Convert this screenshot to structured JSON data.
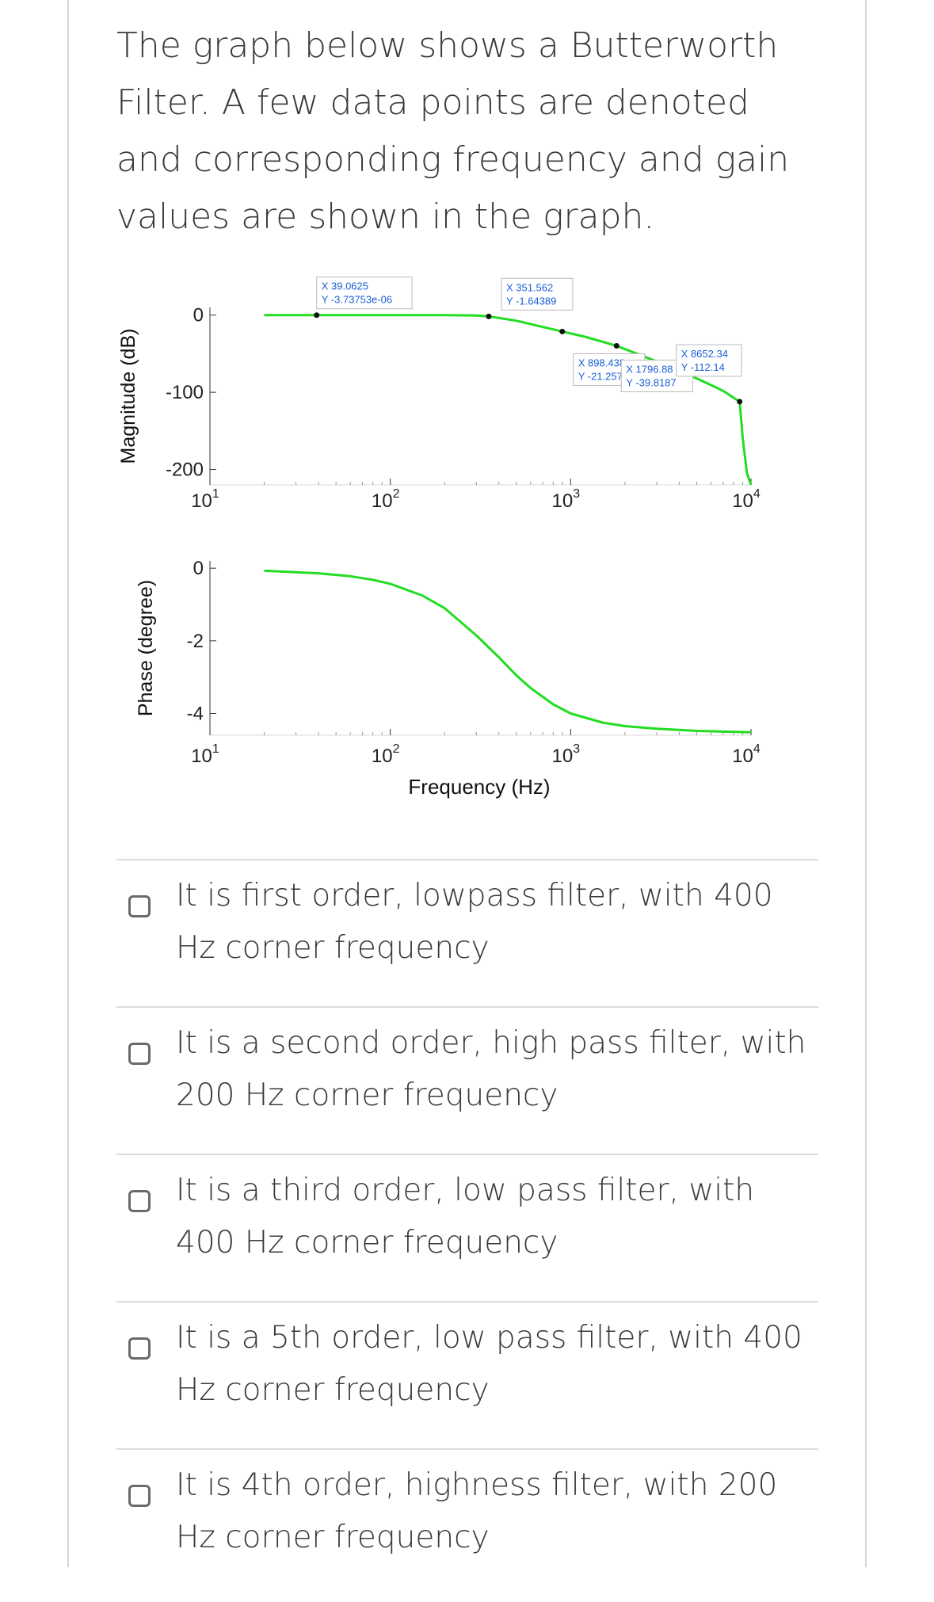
{
  "question": "The graph below shows a Butterworth Filter. A few data points are denoted and corresponding frequency and gain values are shown in the graph.",
  "chart_data": [
    {
      "type": "line",
      "ylabel": "Magnitude (dB)",
      "xscale": "log",
      "xlim": [
        10,
        10000
      ],
      "ylim": [
        -220,
        10
      ],
      "yticks": [
        0,
        -100,
        -200
      ],
      "ytick_labels": [
        "0",
        "-100",
        "-200"
      ],
      "xtick_bases": [
        "10",
        "10",
        "10",
        "10"
      ],
      "xtick_exps": [
        "1",
        "2",
        "3",
        "4"
      ],
      "series": [
        {
          "color": "#22dd22",
          "x": [
            20,
            39.0625,
            100,
            200,
            300,
            351.562,
            500,
            898.438,
            1200,
            1796.88,
            3000,
            5000,
            7000,
            8652.34,
            9000,
            9500,
            10000
          ],
          "y": [
            0,
            0,
            0,
            -0.01,
            -0.5,
            -1.64389,
            -7.2,
            -21.2578,
            -28,
            -39.8187,
            -60,
            -82,
            -98,
            -112.14,
            -160,
            -205,
            -220
          ]
        }
      ],
      "datatips": [
        {
          "x": 39.0625,
          "y": -3.73753e-06,
          "x_label": "X 39.0625",
          "y_label": "Y -3.73753e-06"
        },
        {
          "x": 351.562,
          "y": -1.64389,
          "x_label": "X 351.562",
          "y_label": "Y -1.64389"
        },
        {
          "x": 898.438,
          "y": -21.2578,
          "x_label": "X 898.438",
          "y_label": "Y -21.2578"
        },
        {
          "x": 1796.88,
          "y": -39.8187,
          "x_label": "X 1796.88",
          "y_label": "Y -39.8187"
        },
        {
          "x": 8652.34,
          "y": -112.14,
          "x_label": "X 8652.34",
          "y_label": "Y -112.14"
        }
      ]
    },
    {
      "type": "line",
      "ylabel": "Phase (degree)",
      "xlabel": "Frequency (Hz)",
      "xscale": "log",
      "xlim": [
        10,
        10000
      ],
      "ylim": [
        -4.6,
        0.2
      ],
      "yticks": [
        0,
        -2,
        -4
      ],
      "ytick_labels": [
        "0",
        "-2",
        "-4"
      ],
      "xtick_bases": [
        "10",
        "10",
        "10",
        "10"
      ],
      "xtick_exps": [
        "1",
        "2",
        "3",
        "4"
      ],
      "series": [
        {
          "color": "#22dd22",
          "x": [
            20,
            40,
            60,
            80,
            100,
            150,
            200,
            300,
            400,
            500,
            600,
            800,
            1000,
            1500,
            2000,
            3000,
            5000,
            7000,
            10000
          ],
          "y": [
            -0.07,
            -0.14,
            -0.22,
            -0.32,
            -0.43,
            -0.75,
            -1.1,
            -1.85,
            -2.45,
            -2.95,
            -3.3,
            -3.75,
            -4.0,
            -4.25,
            -4.35,
            -4.42,
            -4.48,
            -4.5,
            -4.52
          ]
        }
      ]
    }
  ],
  "options": [
    {
      "label": "It is first order, lowpass filter, with 400 Hz corner frequency"
    },
    {
      "label": "It is a second order, high pass filter, with 200 Hz corner frequency"
    },
    {
      "label": "It is a third order, low pass filter, with 400 Hz corner frequency"
    },
    {
      "label": "It is a 5th order, low pass filter, with 400 Hz corner frequency"
    },
    {
      "label": "It is 4th order, highness filter, with 200 Hz corner frequency"
    }
  ]
}
